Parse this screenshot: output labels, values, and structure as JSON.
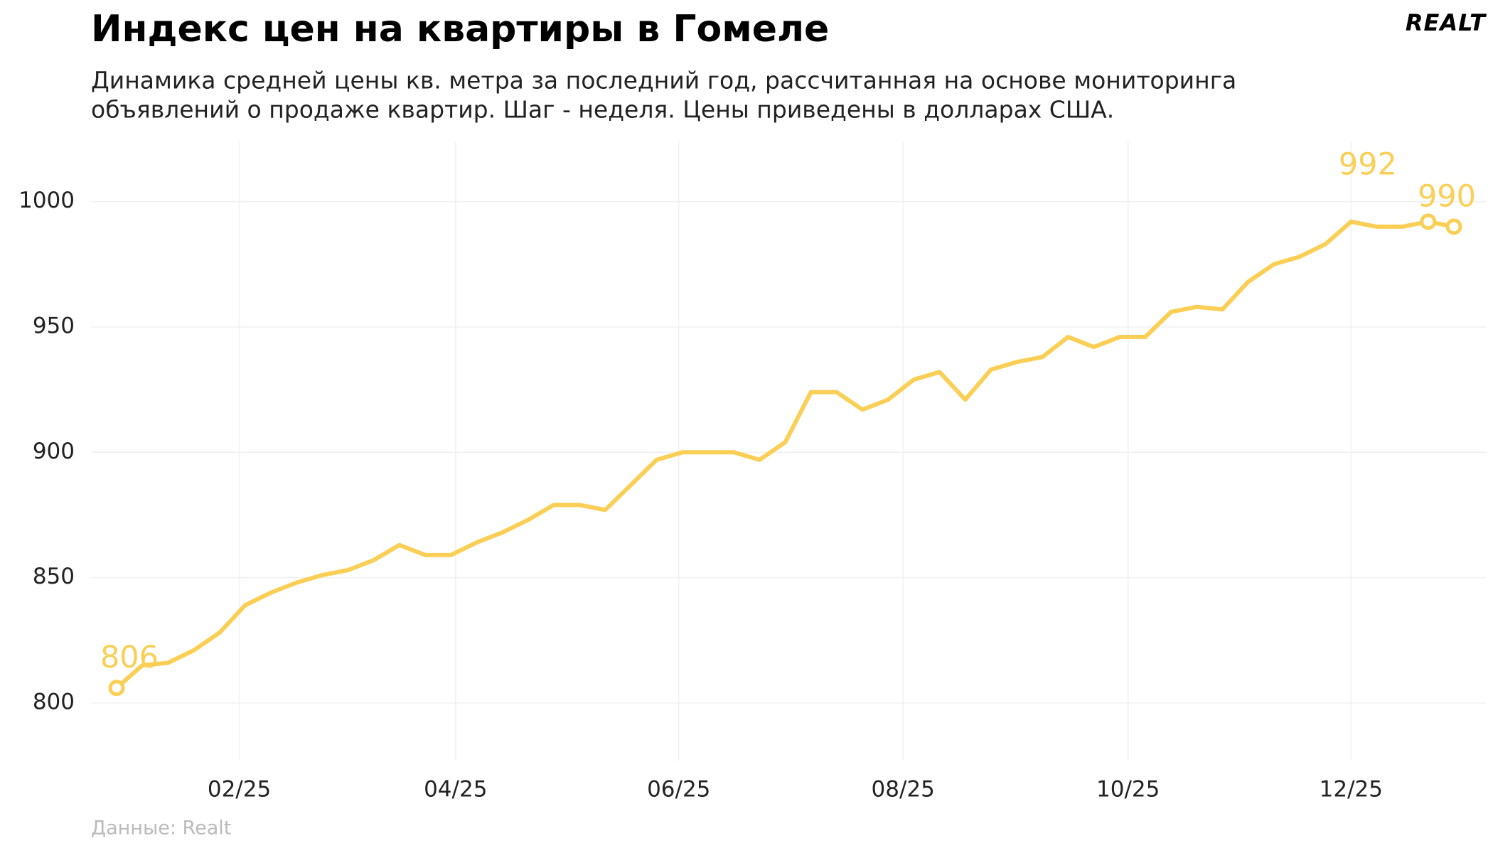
{
  "chart_data": {
    "type": "line",
    "title": "Индекс цен на квартиры в Гомеле",
    "subtitle": [
      "Динамика средней цены кв. метра за последний год, рассчитанная на основе мониторинга",
      "объявлений о продаже квартир. Шаг - неделя. Цены приведены в долларах США."
    ],
    "source": "Данные: Realt",
    "logo": "REALT",
    "categories": [
      null,
      null,
      null,
      null,
      null,
      null,
      null,
      null,
      null,
      null,
      null,
      null,
      null,
      null,
      null,
      null,
      null,
      null,
      null,
      null,
      null,
      null,
      null,
      null,
      null,
      null,
      null,
      null,
      null,
      null,
      null,
      null,
      null,
      null,
      null,
      null,
      null,
      null,
      null,
      null,
      null,
      null,
      null,
      null,
      null,
      null,
      null,
      null,
      null,
      null,
      null,
      null,
      null
    ],
    "series": [
      {
        "color": "#fbcf55",
        "values": [
          806,
          815,
          816,
          821,
          828,
          839,
          844,
          848,
          851,
          853,
          857,
          863,
          859,
          859,
          864,
          868,
          873,
          879,
          879,
          877,
          887,
          897,
          900,
          900,
          900,
          897,
          904,
          924,
          924,
          917,
          921,
          929,
          932,
          921,
          933,
          936,
          938,
          946,
          942,
          946,
          946,
          956,
          958,
          957,
          968,
          975,
          978,
          983,
          992,
          990,
          990,
          992,
          990
        ]
      }
    ],
    "markers": [
      0,
      51,
      52
    ],
    "xticks": [
      {
        "value": 4.77,
        "label": "02/25"
      },
      {
        "value": 13.18,
        "label": "04/25"
      },
      {
        "value": 21.86,
        "label": "06/25"
      },
      {
        "value": 30.58,
        "label": "08/25"
      },
      {
        "value": 39.33,
        "label": "10/25"
      },
      {
        "value": 48.0,
        "label": "12/25"
      }
    ],
    "ylim": [
      777,
      1024
    ],
    "yticks": [
      800,
      850,
      900,
      950,
      1000
    ],
    "grid": true
  }
}
